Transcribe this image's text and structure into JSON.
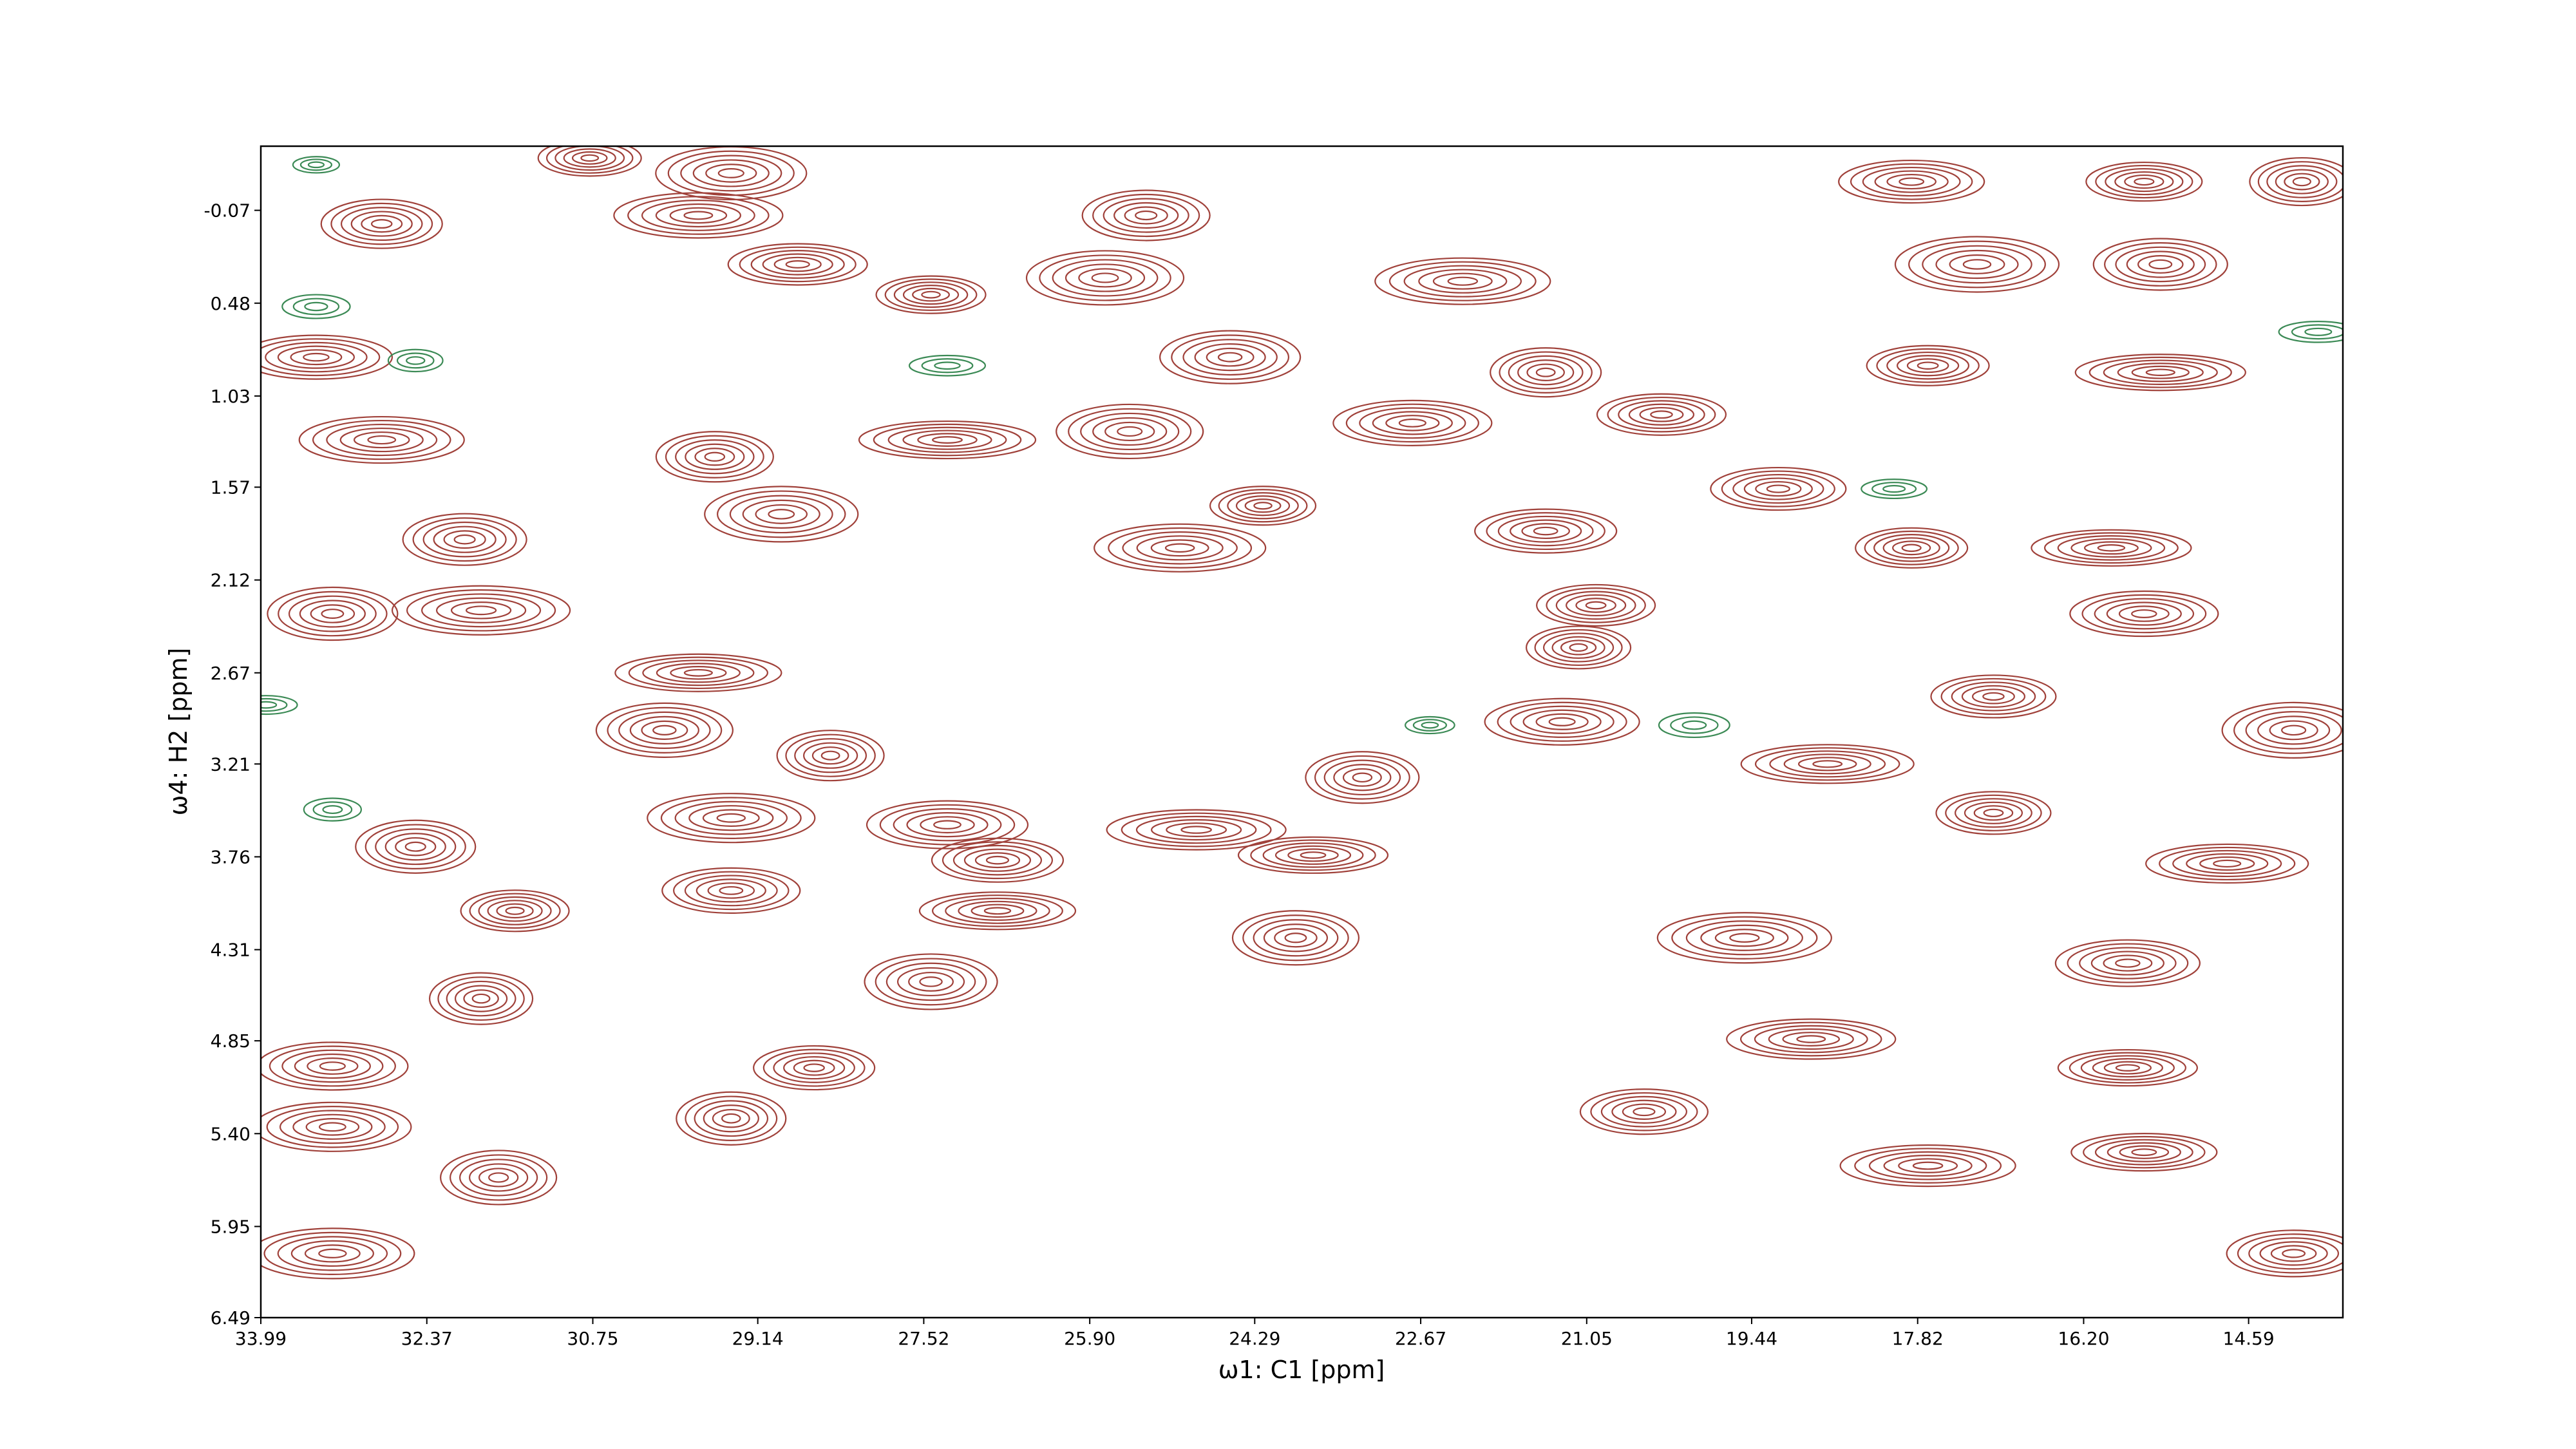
{
  "chart_data": {
    "type": "contour",
    "xlabel": "ω1: C1 [ppm]",
    "ylabel": "ω4: H2 [ppm]",
    "xlim": [
      33.99,
      13.67
    ],
    "ylim": [
      6.49,
      -0.45
    ],
    "xticks": [
      33.99,
      32.37,
      30.75,
      29.14,
      27.52,
      {
        "value": 25.9,
        "label": "25.90"
      },
      24.29,
      22.67,
      21.05,
      19.44,
      17.82,
      {
        "value": 16.2,
        "label": "16.20"
      },
      14.59
    ],
    "yticks": [
      -0.07,
      0.48,
      1.03,
      1.57,
      2.12,
      2.67,
      3.21,
      3.76,
      4.31,
      4.85,
      {
        "value": 5.4,
        "label": "5.40"
      },
      5.95,
      6.49
    ],
    "series": [
      {
        "color": "#a0413a",
        "x": [
          30.78,
          29.4,
          32.81,
          29.72,
          28.75,
          27.45,
          25.75,
          25.35,
          22.26,
          17.88,
          15.61,
          17.24,
          15.45,
          14.07,
          33.45,
          17.72,
          15.45,
          24.53,
          21.45,
          22.75,
          20.32,
          27.29,
          25.51,
          29.56,
          32.81,
          19.18,
          24.21,
          28.91,
          32.0,
          25.02,
          21.45,
          17.88,
          15.93,
          33.29,
          31.84,
          15.61,
          20.96,
          29.72,
          30.05,
          28.43,
          21.29,
          17.08,
          18.7,
          14.15,
          23.24,
          27.29,
          26.8,
          24.86,
          23.72,
          32.48,
          29.4,
          29.4,
          31.51,
          26.8,
          23.89,
          19.51,
          15.77,
          17.08,
          14.8,
          27.45,
          31.84,
          33.29,
          28.59,
          18.86,
          15.77,
          29.4,
          33.29,
          20.49,
          17.72,
          15.61,
          31.67,
          33.29,
          14.15,
          21.13
        ],
        "y": [
          -0.38,
          -0.29,
          0.01,
          -0.04,
          0.25,
          0.43,
          0.33,
          -0.04,
          0.35,
          -0.24,
          -0.24,
          0.25,
          0.25,
          -0.24,
          0.8,
          0.85,
          0.89,
          0.8,
          0.89,
          1.19,
          1.14,
          1.29,
          1.24,
          1.39,
          1.29,
          1.58,
          1.68,
          1.73,
          1.88,
          1.93,
          1.83,
          1.93,
          1.93,
          2.32,
          2.3,
          2.32,
          2.27,
          2.67,
          3.01,
          3.16,
          2.96,
          2.81,
          3.21,
          3.01,
          3.29,
          3.57,
          3.78,
          3.6,
          3.75,
          3.7,
          3.53,
          3.96,
          4.08,
          4.08,
          4.24,
          4.24,
          4.39,
          3.5,
          3.8,
          4.5,
          4.6,
          5.0,
          5.01,
          4.84,
          5.01,
          5.31,
          5.36,
          5.27,
          5.59,
          5.51,
          5.66,
          6.11,
          6.11,
          2.52
        ]
      },
      {
        "color": "#3b8a55",
        "x": [
          33.45,
          33.45,
          32.48,
          27.29,
          33.94,
          22.58,
          20.0,
          33.29,
          13.91,
          18.05
        ],
        "y": [
          -0.34,
          0.5,
          0.82,
          0.85,
          2.86,
          2.98,
          2.98,
          3.48,
          0.65,
          1.58
        ]
      }
    ]
  }
}
